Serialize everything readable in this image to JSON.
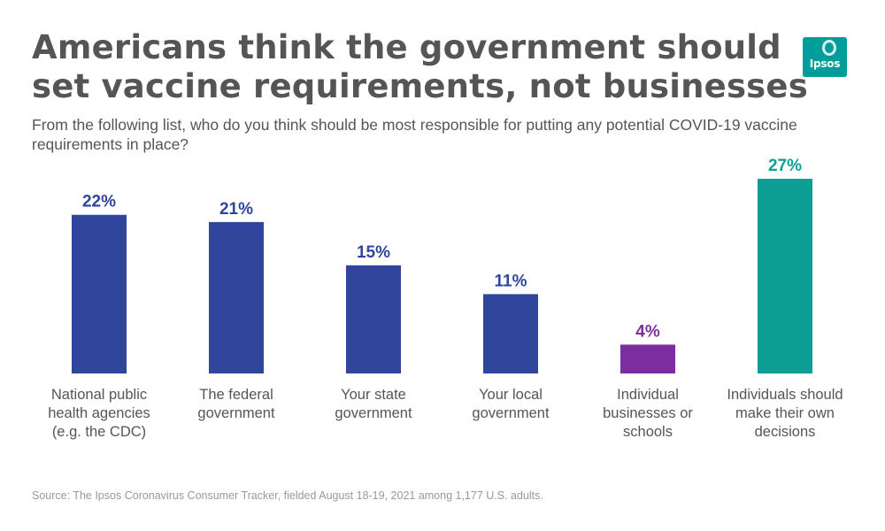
{
  "title_lines": [
    "Americans think the government should",
    "set vaccine requirements, not businesses"
  ],
  "subtitle": "From the following list, who do you think should be most responsible for putting any potential COVID-19 vaccine requirements in place?",
  "logo": {
    "text": "Ipsos",
    "color": "#009d9a"
  },
  "source": "Source: The Ipsos Coronavirus Consumer Tracker, fielded August 18-19, 2021 among 1,177 U.S. adults.",
  "chart_data": {
    "type": "bar",
    "categories": [
      [
        "National public",
        "health agencies",
        "(e.g. the CDC)"
      ],
      [
        "The federal",
        "government"
      ],
      [
        "Your state",
        "government"
      ],
      [
        "Your local",
        "government"
      ],
      [
        "Individual",
        "businesses or",
        "schools"
      ],
      [
        "Individuals should",
        "make their own",
        "decisions"
      ]
    ],
    "values": [
      22,
      21,
      15,
      11,
      4,
      27
    ],
    "value_labels": [
      "22%",
      "21%",
      "15%",
      "11%",
      "4%",
      "27%"
    ],
    "colors": [
      "#2f469c",
      "#2f469c",
      "#2f469c",
      "#2f469c",
      "#7b2f9e",
      "#0f9e96"
    ],
    "label_colors": [
      "#2f469c",
      "#2f469c",
      "#2f469c",
      "#2f469c",
      "#7b2f9e",
      "#0f9e96"
    ],
    "ylim": [
      0,
      27
    ],
    "grid": false,
    "legend": "none"
  }
}
